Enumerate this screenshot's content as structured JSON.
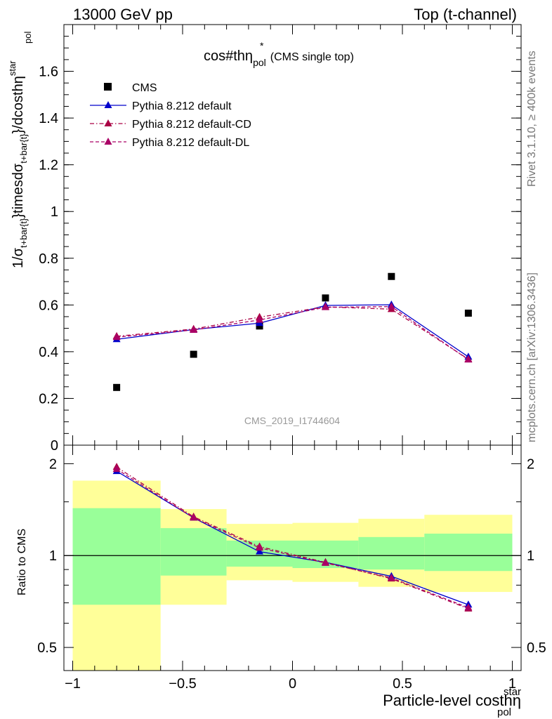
{
  "header": {
    "left": "13000 GeV pp",
    "right": "Top (t-channel)"
  },
  "side_labels": {
    "rivet": "Rivet 3.1.10, ≥ 400k events",
    "mcplots": "mcplots.cern.ch [arXiv:1306.3436]"
  },
  "plot_title": {
    "main": "cos#thη",
    "sup": "*",
    "sub": "pol",
    "suffix": "(CMS single top)"
  },
  "watermark": "CMS_2019_I1744604",
  "colors": {
    "data": "#000000",
    "default": "#0000cc",
    "cd": "#aa0044",
    "dl": "#aa0066",
    "band_inner": "#99ff99",
    "band_outer": "#ffff99"
  },
  "legend": [
    {
      "key": "data",
      "label": "CMS",
      "style": "square"
    },
    {
      "key": "default",
      "label": "Pythia 8.212 default",
      "style": "solid"
    },
    {
      "key": "cd",
      "label": "Pythia 8.212 default-CD",
      "style": "dashdot"
    },
    {
      "key": "dl",
      "label": "Pythia 8.212 default-DL",
      "style": "dashed"
    }
  ],
  "chart_data": [
    {
      "type": "line",
      "panel": "main",
      "ylabel": {
        "pre": "1/σ",
        "sub1": "t+bar{t}",
        "mid": "}timesdσ",
        "sub2": "t+bar{t}",
        "mid2": "}/dcosthη",
        "sup": "star",
        "sub3": "pol"
      },
      "xlim": [
        -1.04,
        1.04
      ],
      "ylim": [
        0,
        1.8
      ],
      "yticks": [
        0,
        0.2,
        0.4,
        0.6,
        0.8,
        1,
        1.2,
        1.4,
        1.6
      ],
      "ytick_labels": [
        "0",
        "0.2",
        "0.4",
        "0.6",
        "0.8",
        "1",
        "1.2",
        "1.4",
        "1.6"
      ],
      "x": [
        -0.8,
        -0.45,
        -0.15,
        0.15,
        0.45,
        0.8
      ],
      "series": [
        {
          "name": "CMS",
          "key": "data",
          "values": [
            0.247,
            0.389,
            0.51,
            0.63,
            0.722,
            0.565
          ]
        },
        {
          "name": "Pythia 8.212 default",
          "key": "default",
          "values": [
            0.453,
            0.495,
            0.522,
            0.598,
            0.601,
            0.378
          ]
        },
        {
          "name": "Pythia 8.212 default-CD",
          "key": "cd",
          "values": [
            0.466,
            0.497,
            0.548,
            0.592,
            0.582,
            0.368
          ]
        },
        {
          "name": "Pythia 8.212 default-DL",
          "key": "dl",
          "values": [
            0.462,
            0.493,
            0.536,
            0.59,
            0.593,
            0.366
          ]
        }
      ]
    },
    {
      "type": "line",
      "panel": "ratio",
      "ylabel": "Ratio to CMS",
      "xlabel": {
        "main": "Particle-level costhη",
        "sup": "star",
        "sub": "pol"
      },
      "xlim": [
        -1.04,
        1.04
      ],
      "ylim": [
        0.42,
        2.3
      ],
      "log_y": true,
      "yticks": [
        0.5,
        1,
        2
      ],
      "ytick_labels": [
        "0.5",
        "1",
        "2"
      ],
      "xticks": [
        -1,
        -0.5,
        0,
        0.5,
        1
      ],
      "xtick_labels": [
        "−1",
        "−0.5",
        "0",
        "0.5",
        "1"
      ],
      "x": [
        -0.8,
        -0.45,
        -0.15,
        0.15,
        0.45,
        0.8
      ],
      "bins": [
        [
          -1,
          -0.6
        ],
        [
          -0.6,
          -0.3
        ],
        [
          -0.3,
          0
        ],
        [
          0,
          0.3
        ],
        [
          0.3,
          0.6
        ],
        [
          0.6,
          1
        ]
      ],
      "band_inner": [
        [
          0.69,
          1.43
        ],
        [
          0.86,
          1.23
        ],
        [
          0.92,
          1.12
        ],
        [
          0.91,
          1.12
        ],
        [
          0.9,
          1.15
        ],
        [
          0.89,
          1.18
        ]
      ],
      "band_outer": [
        [
          0.37,
          1.76
        ],
        [
          0.69,
          1.42
        ],
        [
          0.83,
          1.27
        ],
        [
          0.82,
          1.28
        ],
        [
          0.79,
          1.32
        ],
        [
          0.76,
          1.36
        ]
      ],
      "series": [
        {
          "name": "Pythia 8.212 default",
          "key": "default",
          "values": [
            1.89,
            1.33,
            1.03,
            0.95,
            0.855,
            0.69
          ]
        },
        {
          "name": "Pythia 8.212 default-CD",
          "key": "cd",
          "values": [
            1.95,
            1.34,
            1.07,
            0.95,
            0.84,
            0.67
          ]
        },
        {
          "name": "Pythia 8.212 default-DL",
          "key": "dl",
          "values": [
            1.92,
            1.33,
            1.06,
            0.945,
            0.845,
            0.675
          ]
        }
      ]
    }
  ]
}
